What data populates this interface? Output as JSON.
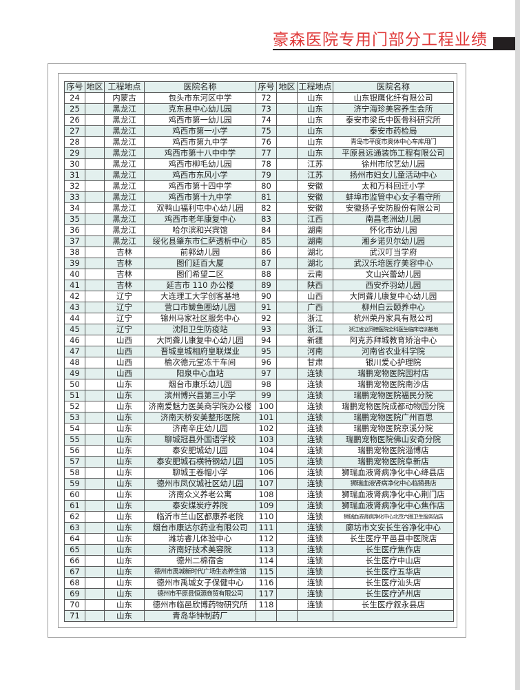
{
  "title": "豪森医院专用门部分工程业绩",
  "headers": [
    "序号",
    "地区",
    "工程地点",
    "医院名称",
    "序号",
    "地区",
    "工程地点",
    "医院名称"
  ],
  "rows": [
    [
      [
        "24",
        "",
        "内蒙古",
        "包头市东河区中学"
      ],
      [
        "72",
        "",
        "山东",
        "山东银鹰化纤有限公司"
      ]
    ],
    [
      [
        "25",
        "",
        "黑龙江",
        "克东县中心幼儿园"
      ],
      [
        "73",
        "",
        "山东",
        "济宁海珍美容养生会所"
      ]
    ],
    [
      [
        "26",
        "",
        "黑龙江",
        "鸡西市第一幼儿园"
      ],
      [
        "74",
        "",
        "山东",
        "泰安市梁氏中医骨科研究所"
      ]
    ],
    [
      [
        "27",
        "",
        "黑龙江",
        "鸡西市第一小学"
      ],
      [
        "75",
        "",
        "山东",
        "泰安市药检局"
      ]
    ],
    [
      [
        "28",
        "",
        "黑龙江",
        "鸡西市第九中学"
      ],
      [
        "76",
        "",
        "山东",
        "青岛市平度市奥体中心车库用门"
      ]
    ],
    [
      [
        "29",
        "",
        "黑龙江",
        "鸡西市第十八中中学"
      ],
      [
        "77",
        "",
        "山东",
        "平原县远通装饰工程有限公司"
      ]
    ],
    [
      [
        "30",
        "",
        "黑龙江",
        "鸡西市柳毛幼儿园"
      ],
      [
        "78",
        "",
        "江苏",
        "徐州市欣艺幼儿园"
      ]
    ],
    [
      [
        "31",
        "",
        "黑龙江",
        "鸡西市东风小学"
      ],
      [
        "79",
        "",
        "江苏",
        "扬州市妇女儿童活动中心"
      ]
    ],
    [
      [
        "32",
        "",
        "黑龙江",
        "鸡西市第十四中学"
      ],
      [
        "80",
        "",
        "安徽",
        "太和万科回迁小学"
      ]
    ],
    [
      [
        "33",
        "",
        "黑龙江",
        "鸡西市第十九中学"
      ],
      [
        "81",
        "",
        "安徽",
        "蚌埠市监管中心女子看守所"
      ]
    ],
    [
      [
        "34",
        "",
        "黑龙江",
        "双鸭山福利屯中心幼儿园"
      ],
      [
        "82",
        "",
        "安徽",
        "安徽扬子安防股份有限公司"
      ]
    ],
    [
      [
        "35",
        "",
        "黑龙江",
        "鸡西市老年康复中心"
      ],
      [
        "83",
        "",
        "江西",
        "南昌老洲幼儿园"
      ]
    ],
    [
      [
        "36",
        "",
        "黑龙江",
        "哈尔滨和兴宾馆"
      ],
      [
        "84",
        "",
        "湖南",
        "怀化市幼儿园"
      ]
    ],
    [
      [
        "37",
        "",
        "黑龙江",
        "绥化县肇东市仁萨透析中心"
      ],
      [
        "85",
        "",
        "湖南",
        "湘乡诺贝尔幼儿园"
      ]
    ],
    [
      [
        "38",
        "",
        "吉林",
        "前郭幼儿园"
      ],
      [
        "86",
        "",
        "湖北",
        "武汉叮当学府"
      ]
    ],
    [
      [
        "39",
        "",
        "吉林",
        "图们延百大厦"
      ],
      [
        "87",
        "",
        "湖北",
        "武汉乐培医疗美容中心"
      ]
    ],
    [
      [
        "40",
        "",
        "吉林",
        "图们希望二区"
      ],
      [
        "88",
        "",
        "云南",
        "文山兴蕾幼儿园"
      ]
    ],
    [
      [
        "41",
        "",
        "吉林",
        "延吉市 110 办公楼"
      ],
      [
        "89",
        "",
        "陕西",
        "西安乔羽幼儿园"
      ]
    ],
    [
      [
        "42",
        "",
        "辽宁",
        "大连理工大学创客基地"
      ],
      [
        "90",
        "",
        "山西",
        "大同聋儿康复中心幼儿园"
      ]
    ],
    [
      [
        "43",
        "",
        "辽宁",
        "营口市鲅鱼圈幼儿园"
      ],
      [
        "91",
        "",
        "广西",
        "柳州白云颐养中心"
      ]
    ],
    [
      [
        "44",
        "",
        "辽宁",
        "锦州马家社区服务中心"
      ],
      [
        "92",
        "",
        "浙江",
        "杭州荣丹家具有限公司"
      ]
    ],
    [
      [
        "45",
        "",
        "辽宁",
        "沈阳卫生防疫站"
      ],
      [
        "93",
        "",
        "浙江",
        "浙江省立同德医院全科医生临床培训基地"
      ]
    ],
    [
      [
        "46",
        "",
        "山西",
        "大同聋儿康复中心幼儿园"
      ],
      [
        "94",
        "",
        "新疆",
        "阿克苏拜城教育矫治中心"
      ]
    ],
    [
      [
        "47",
        "",
        "山西",
        "晋城皇城相府皇联煤业"
      ],
      [
        "95",
        "",
        "河南",
        "河南省农业科学院"
      ]
    ],
    [
      [
        "48",
        "",
        "山西",
        "榆次德元堂冻干车间"
      ],
      [
        "96",
        "",
        "甘肃",
        "银川爱心护理院"
      ]
    ],
    [
      [
        "49",
        "",
        "山西",
        "阳泉中心血站"
      ],
      [
        "97",
        "",
        "连锁",
        "瑞鹏宠物医院园村店"
      ]
    ],
    [
      [
        "50",
        "",
        "山东",
        "烟台市康乐幼儿园"
      ],
      [
        "98",
        "",
        "连锁",
        "瑞鹏宠物医院南沙店"
      ]
    ],
    [
      [
        "51",
        "",
        "山东",
        "滨州博兴县第三小学"
      ],
      [
        "99",
        "",
        "连锁",
        "瑞鹏宠物医院福民分院"
      ]
    ],
    [
      [
        "52",
        "",
        "山东",
        "济南爱魅力医美商学院办公楼"
      ],
      [
        "100",
        "",
        "连锁",
        "瑞鹏宠物医院成都动物园分院"
      ]
    ],
    [
      [
        "53",
        "",
        "山东",
        "济南天桥安美整形医院"
      ],
      [
        "101",
        "",
        "连锁",
        "瑞鹏宠物医院广州百思"
      ]
    ],
    [
      [
        "54",
        "",
        "山东",
        "济南辛庄幼儿园"
      ],
      [
        "102",
        "",
        "连锁",
        "瑞鹏宠物医院京溪分院"
      ]
    ],
    [
      [
        "55",
        "",
        "山东",
        "聊城冠县外国语学校"
      ],
      [
        "103",
        "",
        "连锁",
        "瑞鹏宠物医院佛山安奇分院"
      ]
    ],
    [
      [
        "56",
        "",
        "山东",
        "泰安肥城幼儿园"
      ],
      [
        "104",
        "",
        "连锁",
        "瑞鹏宠物医院淄博店"
      ]
    ],
    [
      [
        "57",
        "",
        "山东",
        "泰安肥城石横特钢幼儿园"
      ],
      [
        "105",
        "",
        "连锁",
        "瑞鹏宠物医院阜新店"
      ]
    ],
    [
      [
        "58",
        "",
        "山东",
        "聊城王卷帽小学"
      ],
      [
        "106",
        "",
        "连锁",
        "狮瑞血液肾病净化中心绛县店"
      ]
    ],
    [
      [
        "59",
        "",
        "山东",
        "德州市凤仪城社区幼儿园"
      ],
      [
        "107",
        "",
        "连锁",
        "狮瑞血液肾病净化中心临猗县店"
      ]
    ],
    [
      [
        "60",
        "",
        "山东",
        "济南众义养老公寓"
      ],
      [
        "108",
        "",
        "连锁",
        "狮瑞血液肾病净化中心荆门店"
      ]
    ],
    [
      [
        "61",
        "",
        "山东",
        "泰安煤炭疗养院"
      ],
      [
        "109",
        "",
        "连锁",
        "狮瑞血液肾病净化中心焦作店"
      ]
    ],
    [
      [
        "62",
        "",
        "山东",
        "临沂市兰山区都康养老院"
      ],
      [
        "110",
        "",
        "连锁",
        "狮瑞血液肾病净化中心北京六圈卫生服务站店"
      ]
    ],
    [
      [
        "63",
        "",
        "山东",
        "烟台市康达尔药业有限公司"
      ],
      [
        "111",
        "",
        "连锁",
        "廊坊市文安长生谷净化中心"
      ]
    ],
    [
      [
        "64",
        "",
        "山东",
        "潍坊睿儿体验中心"
      ],
      [
        "112",
        "",
        "连锁",
        "长生医疗平邑县中医院店"
      ]
    ],
    [
      [
        "65",
        "",
        "山东",
        "济南好技术美容院"
      ],
      [
        "113",
        "",
        "连锁",
        "长生医疗焦作店"
      ]
    ],
    [
      [
        "66",
        "",
        "山东",
        "德州二棉宿舍"
      ],
      [
        "114",
        "",
        "连锁",
        "长生医疗中山店"
      ]
    ],
    [
      [
        "67",
        "",
        "山东",
        "德州市禹城新时代广场生态养生馆"
      ],
      [
        "115",
        "",
        "连锁",
        "长生医疗五华店"
      ]
    ],
    [
      [
        "68",
        "",
        "山东",
        "德州市禹城女子保健中心"
      ],
      [
        "116",
        "",
        "连锁",
        "长生医疗汕头店"
      ]
    ],
    [
      [
        "69",
        "",
        "山东",
        "德州市平原县恒源商贸有限公司"
      ],
      [
        "117",
        "",
        "连锁",
        "长生医疗泸州店"
      ]
    ],
    [
      [
        "70",
        "",
        "山东",
        "德州市临邑欣博药物研究所"
      ],
      [
        "118",
        "",
        "连锁",
        "长生医疗叙永县店"
      ]
    ],
    [
      [
        "71",
        "",
        "山东",
        "青岛华钟制药厂"
      ],
      [
        "",
        "",
        "",
        ""
      ]
    ]
  ]
}
